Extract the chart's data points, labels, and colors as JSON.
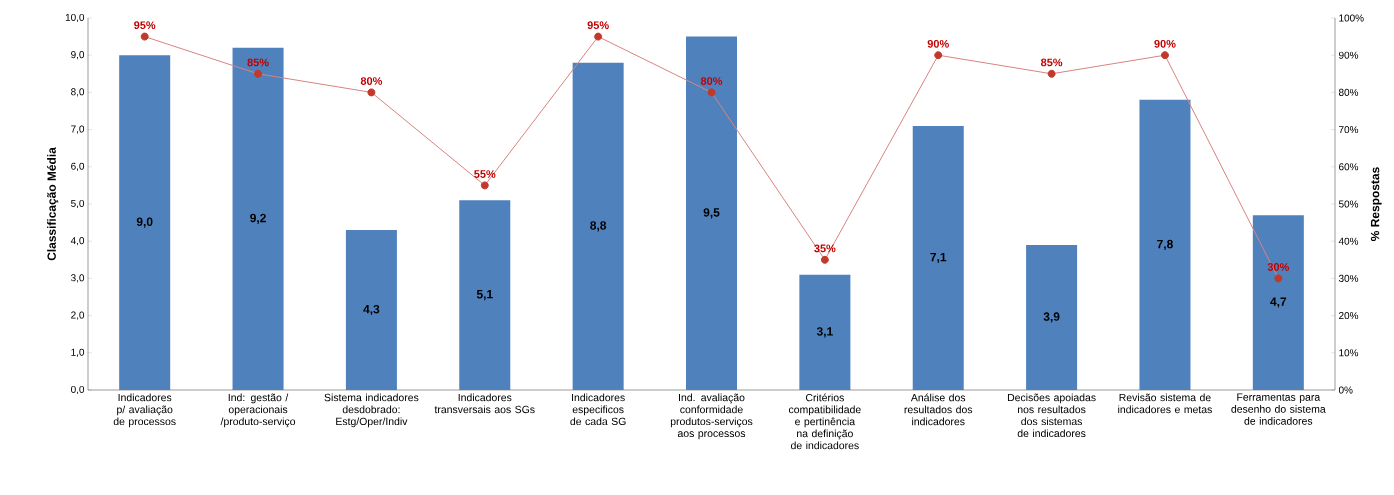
{
  "chart_data": {
    "type": "bar",
    "categories": [
      "Indicadores p/ avaliação de processos",
      "Ind: gestão / operacionais /produto-serviço",
      "Sistema indicadores desdobrado: Estg/Oper/Indiv",
      "Indicadores transversais aos SGs",
      "Indicadores especificos de cada SG",
      "Ind. avaliação conformidade produtos-serviços aos processos",
      "Critérios compatibilidade e pertinência na definição de indicadores",
      "Análise dos resultados dos indicadores",
      "Decisões apoiadas nos resultados dos sistemas de indicadores",
      "Revisão sistema de indicadores e metas",
      "Ferramentas para desenho do sistema de indicadores"
    ],
    "series": [
      {
        "color": "#4f81bd",
        "values": [
          9.0,
          9.2,
          4.3,
          5.1,
          8.8,
          9.5,
          3.1,
          7.1,
          3.9,
          7.8,
          4.7
        ],
        "value_labels": [
          "9,0",
          "9,2",
          "4,3",
          "5,1",
          "8,8",
          "9,5",
          "3,1",
          "7,1",
          "3,9",
          "7,8",
          "4,7"
        ]
      },
      {
        "type": "line",
        "axis": "y2",
        "color": "#d9837f",
        "marker": "circle",
        "values": [
          95,
          85,
          80,
          55,
          95,
          80,
          35,
          90,
          85,
          90,
          30
        ],
        "value_labels": [
          "95%",
          "85%",
          "80%",
          "55%",
          "95%",
          "80%",
          "35%",
          "90%",
          "85%",
          "90%",
          "30%"
        ]
      }
    ],
    "ylabel": "Classificação Média",
    "y2label": "% Respostas",
    "ylim": [
      0,
      10
    ],
    "yticks": [
      {
        "value": 0,
        "label": "0,0"
      },
      {
        "value": 1,
        "label": "1,0"
      },
      {
        "value": 2,
        "label": "2,0"
      },
      {
        "value": 3,
        "label": "3,0"
      },
      {
        "value": 4,
        "label": "4,0"
      },
      {
        "value": 5,
        "label": "5,0"
      },
      {
        "value": 6,
        "label": "6,0"
      },
      {
        "value": 7,
        "label": "7,0"
      },
      {
        "value": 8,
        "label": "8,0"
      },
      {
        "value": 9,
        "label": "9,0"
      },
      {
        "value": 10,
        "label": "10,0"
      }
    ],
    "y2lim": [
      0,
      100
    ],
    "y2ticks": [
      {
        "value": 0,
        "label": "0%"
      },
      {
        "value": 10,
        "label": "10%"
      },
      {
        "value": 20,
        "label": "20%"
      },
      {
        "value": 30,
        "label": "30%"
      },
      {
        "value": 40,
        "label": "40%"
      },
      {
        "value": 50,
        "label": "50%"
      },
      {
        "value": 60,
        "label": "60%"
      },
      {
        "value": 70,
        "label": "70%"
      },
      {
        "value": 80,
        "label": "80%"
      },
      {
        "value": 90,
        "label": "90%"
      },
      {
        "value": 100,
        "label": "100%"
      }
    ],
    "grid": false
  }
}
